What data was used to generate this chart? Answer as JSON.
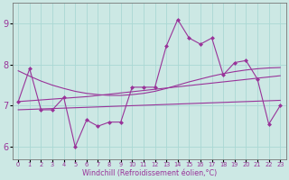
{
  "xlabel": "Windchill (Refroidissement éolien,°C)",
  "bg_color": "#cce8e4",
  "line_color": "#993399",
  "grid_color": "#aad8d4",
  "x_labels": [
    "0",
    "1",
    "2",
    "3",
    "4",
    "5",
    "6",
    "7",
    "8",
    "9",
    "10",
    "11",
    "12",
    "13",
    "14",
    "15",
    "16",
    "17",
    "18",
    "19",
    "20",
    "21",
    "22",
    "23"
  ],
  "ylim": [
    5.7,
    9.5
  ],
  "yticks": [
    6,
    7,
    8,
    9
  ],
  "series1": [
    7.1,
    7.9,
    6.9,
    6.9,
    7.2,
    6.0,
    6.65,
    6.5,
    6.6,
    6.6,
    7.45,
    7.45,
    7.45,
    8.45,
    9.1,
    8.65,
    8.5,
    8.65,
    7.75,
    8.05,
    8.1,
    7.65,
    6.55,
    7.0
  ],
  "series_upper": [
    7.85,
    7.72,
    7.6,
    7.5,
    7.42,
    7.35,
    7.3,
    7.27,
    7.25,
    7.25,
    7.27,
    7.3,
    7.35,
    7.42,
    7.5,
    7.58,
    7.65,
    7.72,
    7.78,
    7.83,
    7.87,
    7.9,
    7.92,
    7.93
  ],
  "series_mid": [
    7.1,
    7.12,
    7.14,
    7.16,
    7.18,
    7.2,
    7.22,
    7.25,
    7.28,
    7.31,
    7.34,
    7.37,
    7.4,
    7.43,
    7.46,
    7.49,
    7.52,
    7.55,
    7.58,
    7.61,
    7.64,
    7.67,
    7.7,
    7.73
  ],
  "series_lower": [
    6.9,
    6.91,
    6.92,
    6.93,
    6.94,
    6.95,
    6.96,
    6.97,
    6.98,
    6.99,
    7.0,
    7.01,
    7.02,
    7.03,
    7.04,
    7.05,
    7.06,
    7.07,
    7.08,
    7.09,
    7.1,
    7.11,
    7.12,
    7.13
  ],
  "marker_size": 2.5,
  "lw": 0.8
}
